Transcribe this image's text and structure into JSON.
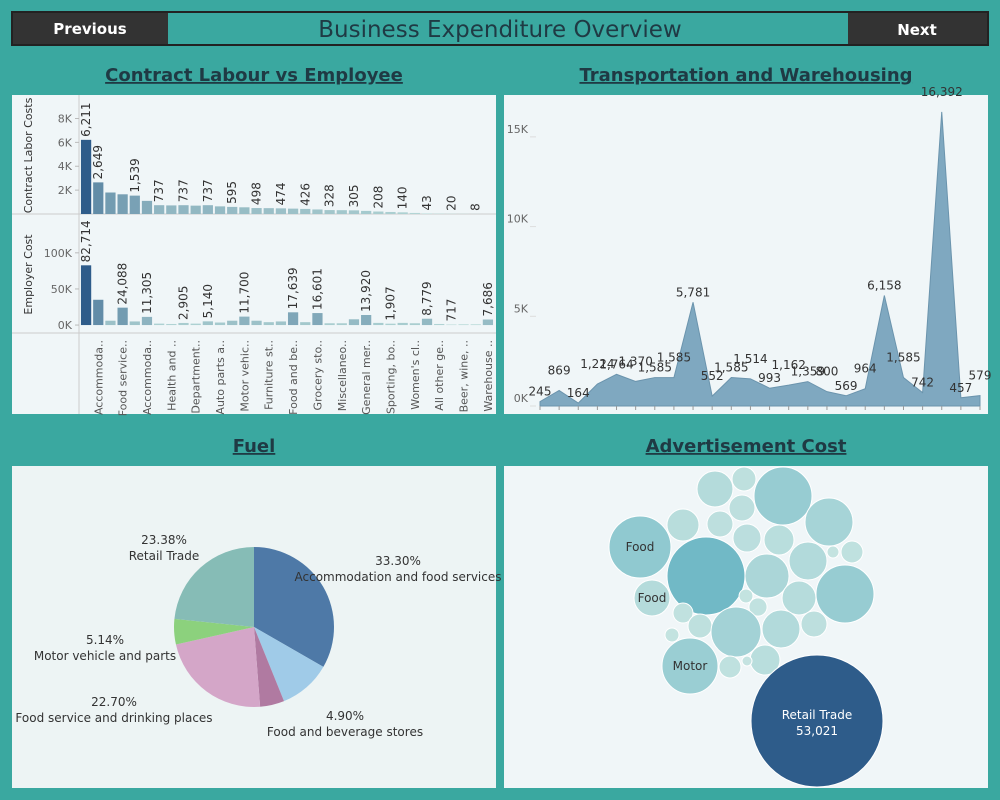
{
  "header": {
    "previous": "Previous",
    "title": "Business Expenditure Overview",
    "next": "Next"
  },
  "chart_data": [
    {
      "type": "bar",
      "title": "Contract Labour vs Employee",
      "categories": [
        null,
        "Accommoda..",
        null,
        "Food service..",
        null,
        "Accommoda..",
        null,
        "Health and ..",
        null,
        "Department..",
        null,
        "Auto parts a..",
        null,
        "Motor vehic..",
        null,
        "Furniture st..",
        null,
        "Food and be..",
        null,
        "Grocery sto..",
        null,
        "Miscellaneo..",
        null,
        "General mer..",
        null,
        "Sporting, bo..",
        null,
        "Women's cl..",
        null,
        "All other ge..",
        null,
        "Beer, wine, ..",
        null,
        "Warehouse .."
      ],
      "series": [
        {
          "name": "Contract Labor Costs",
          "values": [
            6211,
            2649,
            1800,
            1650,
            1539,
            1100,
            737,
            720,
            737,
            700,
            737,
            640,
            595,
            560,
            498,
            490,
            474,
            450,
            426,
            380,
            328,
            320,
            305,
            260,
            208,
            170,
            140,
            90,
            43,
            30,
            20,
            15,
            8,
            5
          ],
          "value_labels": [
            "6,211",
            "2,649",
            null,
            null,
            "1,539",
            null,
            "737",
            null,
            "737",
            null,
            "737",
            null,
            "595",
            null,
            "498",
            null,
            "474",
            null,
            "426",
            null,
            "328",
            null,
            "305",
            null,
            "208",
            null,
            "140",
            null,
            "43",
            null,
            "20",
            null,
            "8",
            null
          ],
          "ylim": [
            0,
            9800
          ],
          "yticks": [
            {
              "value": 2000,
              "label": "2K"
            },
            {
              "value": 4000,
              "label": "4K"
            },
            {
              "value": 6000,
              "label": "6K"
            },
            {
              "value": 8000,
              "label": "8K"
            }
          ]
        },
        {
          "name": "Employer Cost",
          "values": [
            82714,
            35000,
            6000,
            24088,
            5000,
            11305,
            2000,
            1500,
            2905,
            2000,
            5140,
            3500,
            6000,
            11700,
            6000,
            4000,
            5000,
            17639,
            4000,
            16601,
            2500,
            2500,
            8000,
            13920,
            3000,
            1907,
            3000,
            2500,
            8779,
            1500,
            717,
            1000,
            1000,
            7686
          ],
          "value_labels": [
            "82,714",
            null,
            null,
            "24,088",
            null,
            "11,305",
            null,
            null,
            "2,905",
            null,
            "5,140",
            null,
            null,
            "11,700",
            null,
            null,
            null,
            "17,639",
            null,
            "16,601",
            null,
            null,
            null,
            "13,920",
            null,
            "1,907",
            null,
            null,
            "8,779",
            null,
            "717",
            null,
            null,
            "7,686"
          ],
          "ylim": [
            -11000,
            151000
          ],
          "yticks": [
            {
              "value": 0,
              "label": "0K"
            },
            {
              "value": 50000,
              "label": "50K"
            },
            {
              "value": 100000,
              "label": "100K"
            }
          ]
        }
      ]
    },
    {
      "type": "area",
      "title": "Transportation and Warehousing",
      "color": "#7fa8c0",
      "values": [
        245,
        869,
        164,
        1224,
        1764,
        1370,
        1585,
        1585,
        5781,
        552,
        1585,
        1514,
        993,
        1162,
        1359,
        800,
        569,
        964,
        6158,
        1585,
        742,
        16392,
        457,
        579
      ],
      "value_labels": [
        "245",
        "869",
        "164",
        "1,224",
        "1,764",
        "1,370",
        "1,585",
        "1,585",
        "5,781",
        "552",
        "1,585",
        "1,514",
        "993",
        "1,162",
        "1,359",
        "800",
        "569",
        "964",
        "6,158",
        "1,585",
        "742",
        "16,392",
        "457",
        "579"
      ],
      "ylim": [
        0,
        17000
      ],
      "yticks": [
        {
          "value": 0,
          "label": "0K"
        },
        {
          "value": 5000,
          "label": "5K"
        },
        {
          "value": 10000,
          "label": "10K"
        },
        {
          "value": 15000,
          "label": "15K"
        }
      ]
    },
    {
      "type": "pie",
      "title": "Fuel",
      "categories": [
        "Accommodation and food services",
        null,
        "Food and beverage stores",
        "Food service and drinking places",
        "Motor vehicle and parts",
        "Retail Trade"
      ],
      "values": [
        33.3,
        10.58,
        4.9,
        22.7,
        5.14,
        23.38
      ],
      "value_labels": [
        "33.30%",
        null,
        "4.90%",
        "22.70%",
        "5.14%",
        "23.38%"
      ],
      "colors": [
        "#4e79a7",
        "#a0cbe8",
        "#b07aa1",
        "#d4a6c8",
        "#8cd17d",
        "#86bcb6"
      ]
    },
    {
      "type": "bubble",
      "title": "Advertisement Cost",
      "categories": [
        null,
        null,
        null,
        null,
        null,
        null,
        null,
        "Food",
        null,
        null,
        null,
        null,
        null,
        null,
        null,
        null,
        "Food",
        null,
        null,
        null,
        null,
        null,
        null,
        null,
        null,
        null,
        "Motor",
        null,
        null,
        null,
        "Retail Trade"
      ],
      "values": [
        3942,
        1752,
        10251,
        3128,
        2063,
        2063,
        7011,
        11698,
        18509,
        2398,
        2739,
        4398,
        438,
        1472,
        5919,
        10251,
        3942,
        1217,
        596,
        1006,
        3506,
        1752,
        7606,
        4398,
        2063,
        596,
        9560,
        1472,
        2739,
        304,
        53021
      ],
      "value_labels": [
        null,
        null,
        null,
        null,
        null,
        null,
        null,
        null,
        null,
        null,
        null,
        null,
        null,
        null,
        null,
        null,
        null,
        null,
        null,
        null,
        null,
        null,
        null,
        null,
        null,
        null,
        null,
        null,
        null,
        null,
        "53,021"
      ]
    }
  ]
}
